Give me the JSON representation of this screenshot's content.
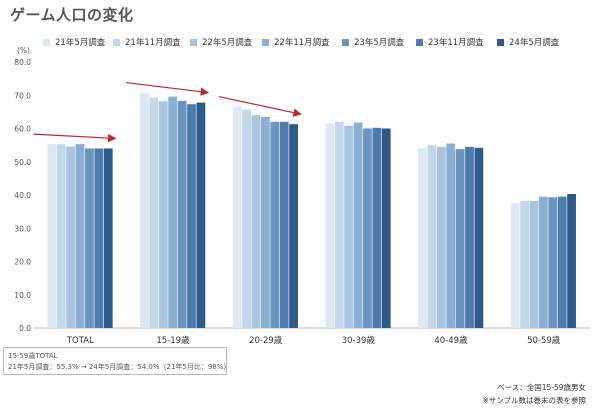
{
  "page": {
    "title": "ゲーム人口の変化"
  },
  "chart_data": {
    "type": "bar",
    "unit_label": "(%)",
    "categories": [
      "TOTAL",
      "15-19歳",
      "20-29歳",
      "30-39歳",
      "40-49歳",
      "50-59歳"
    ],
    "series": [
      {
        "name": "21年5月調査",
        "color": "#dce8f3",
        "values": [
          55.3,
          70.8,
          66.6,
          61.5,
          54.0,
          37.5
        ]
      },
      {
        "name": "21年11月調査",
        "color": "#c4d7ea",
        "values": [
          55.3,
          69.3,
          65.7,
          62.0,
          55.0,
          38.2
        ]
      },
      {
        "name": "22年5月調査",
        "color": "#a9c4df",
        "values": [
          54.6,
          68.2,
          64.0,
          60.8,
          54.5,
          38.2
        ]
      },
      {
        "name": "22年11月調査",
        "color": "#8aafd2",
        "values": [
          55.3,
          69.6,
          63.5,
          61.8,
          55.5,
          39.5
        ]
      },
      {
        "name": "23年5月調査",
        "color": "#6a95c1",
        "values": [
          54.0,
          68.3,
          62.0,
          60.0,
          53.8,
          39.3
        ]
      },
      {
        "name": "23年11月調査",
        "color": "#4d7bac",
        "values": [
          54.0,
          67.3,
          62.0,
          60.2,
          54.5,
          39.5
        ]
      },
      {
        "name": "24年5月調査",
        "color": "#2d5a8a",
        "values": [
          54.0,
          67.8,
          61.3,
          60.0,
          54.2,
          40.3
        ]
      }
    ],
    "yticks": [
      "0.0",
      "10.0",
      "20.0",
      "30.0",
      "40.0",
      "50.0",
      "60.0",
      "70.0",
      "80.0"
    ],
    "ylim": [
      0,
      80
    ],
    "grid": false,
    "legend_position": "top",
    "trend_arrow_color": "#c0272d"
  },
  "note": {
    "line1": "15-59歳TOTAL",
    "line2": "21年5月調査：55.3% → 24年5月調査：54.0%（21年5月比：98%）"
  },
  "base": {
    "line1": "ベース：全国15-59歳男女",
    "line2": "※サンプル数は巻末の表を参照"
  }
}
